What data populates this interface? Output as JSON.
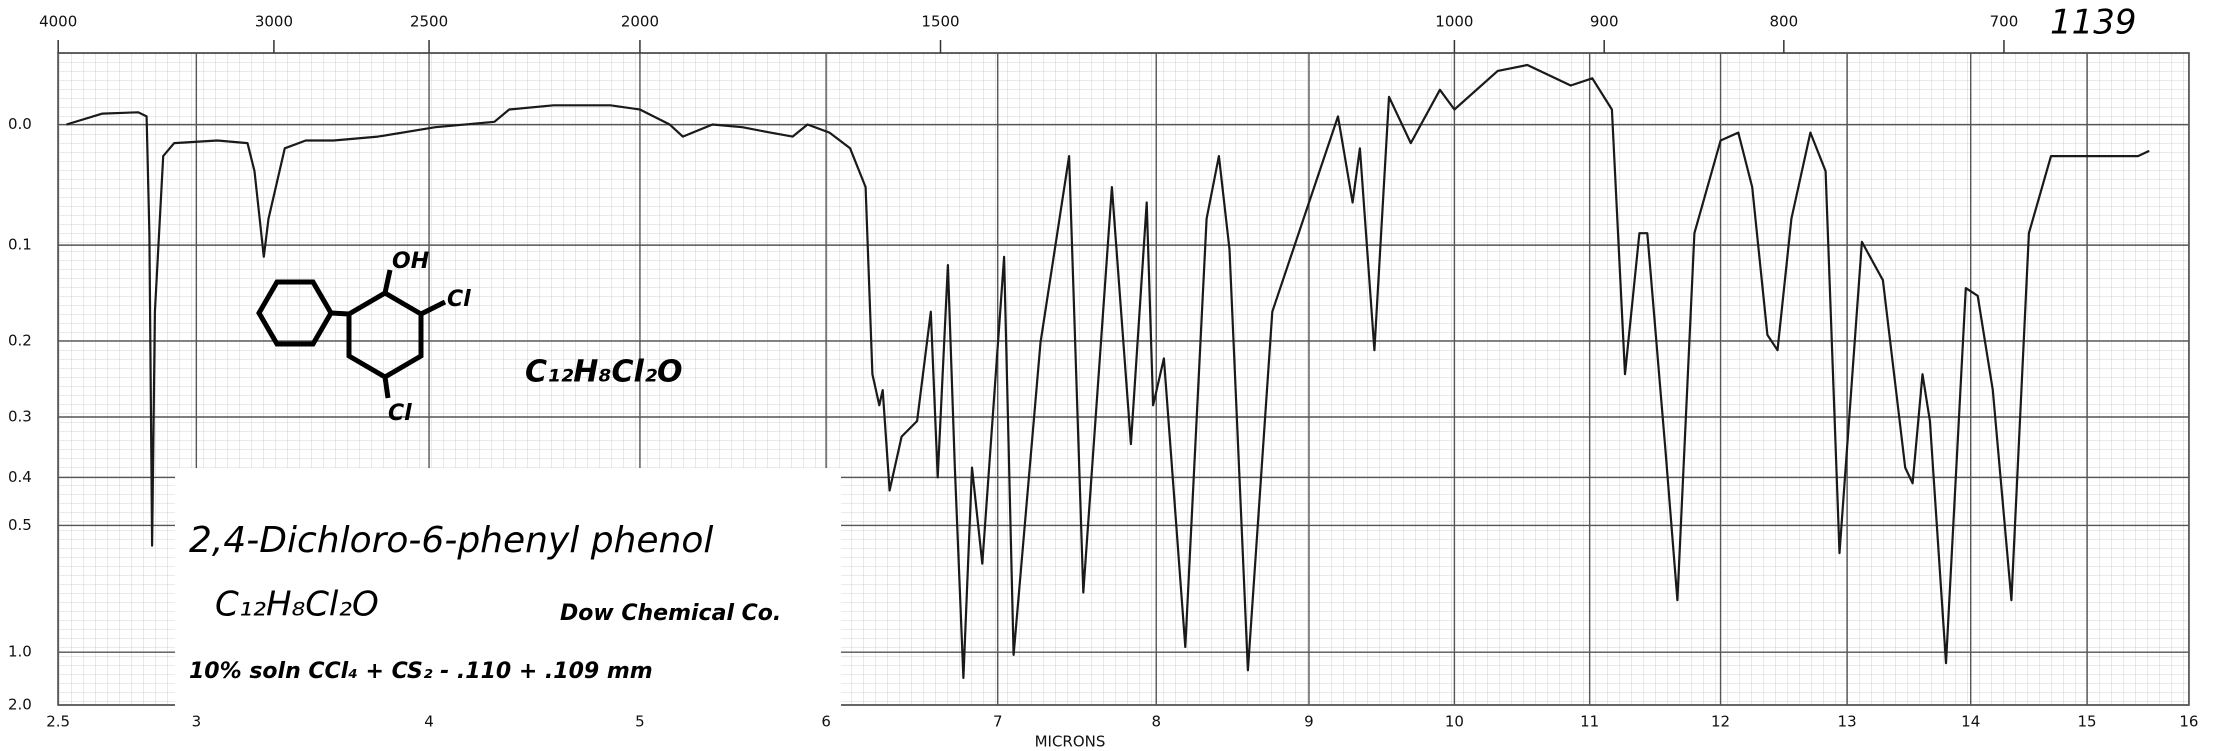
{
  "chart_data": {
    "type": "line",
    "x_label": "MICRONS",
    "annotation": "1139",
    "xlim": [
      2.5,
      16
    ],
    "xticks": [
      2.5,
      3,
      4,
      5,
      6,
      7,
      8,
      9,
      10,
      11,
      12,
      13,
      14,
      15,
      16
    ],
    "x2ticks": [
      4000,
      3000,
      2500,
      2000,
      1500,
      1000,
      900,
      800,
      700
    ],
    "ylim": [
      -0.05,
      2.0
    ],
    "y_scale": "absorbance",
    "yticks": [
      {
        "value": 0,
        "label": "0.0"
      },
      0.1,
      0.2,
      0.3,
      0.4,
      0.5,
      {
        "value": 1,
        "label": "1.0"
      },
      {
        "value": 2,
        "label": "2.0"
      }
    ],
    "grid": true,
    "color": "#1a1a1a",
    "x": [
      2.53,
      2.66,
      2.79,
      2.82,
      2.83,
      2.84,
      2.85,
      2.88,
      2.92,
      3.09,
      3.22,
      3.25,
      3.29,
      3.31,
      3.38,
      3.47,
      3.59,
      3.78,
      4.03,
      4.31,
      4.38,
      4.59,
      4.86,
      5.0,
      5.16,
      5.23,
      5.39,
      5.55,
      5.7,
      5.82,
      5.9,
      6.02,
      6.14,
      6.23,
      6.27,
      6.31,
      6.33,
      6.37,
      6.44,
      6.53,
      6.61,
      6.65,
      6.71,
      6.75,
      6.8,
      6.85,
      6.91,
      7.04,
      7.1,
      7.27,
      7.45,
      7.54,
      7.72,
      7.84,
      7.94,
      7.98,
      8.05,
      8.19,
      8.33,
      8.41,
      8.48,
      8.6,
      8.76,
      9.0,
      9.2,
      9.3,
      9.35,
      9.45,
      9.55,
      9.7,
      9.9,
      10.0,
      10.32,
      10.54,
      10.86,
      11.02,
      11.17,
      11.27,
      11.38,
      11.44,
      11.58,
      11.67,
      11.8,
      12.0,
      12.14,
      12.25,
      12.37,
      12.45,
      12.56,
      12.71,
      12.83,
      12.94,
      13.12,
      13.29,
      13.47,
      13.53,
      13.61,
      13.67,
      13.8,
      13.96,
      14.06,
      14.19,
      14.35,
      14.5,
      14.69,
      15.0,
      15.5,
      15.61
    ],
    "values": [
      0.0,
      -0.008,
      -0.009,
      -0.006,
      0.09,
      0.55,
      0.167,
      0.024,
      0.014,
      0.012,
      0.014,
      0.036,
      0.111,
      0.076,
      0.018,
      0.012,
      0.012,
      0.009,
      0.002,
      -0.002,
      -0.011,
      -0.014,
      -0.014,
      -0.011,
      0.0,
      0.009,
      0.0,
      0.002,
      0.006,
      0.009,
      0.0,
      0.006,
      0.018,
      0.049,
      0.241,
      0.283,
      0.262,
      0.425,
      0.33,
      0.306,
      0.167,
      0.4,
      0.119,
      0.38,
      1.25,
      0.382,
      0.6,
      0.111,
      1.02,
      0.202,
      0.024,
      0.695,
      0.049,
      0.342,
      0.062,
      0.283,
      0.221,
      0.963,
      0.076,
      0.024,
      0.104,
      1.16,
      0.167,
      0.062,
      -0.006,
      0.062,
      0.018,
      0.211,
      -0.02,
      0.014,
      -0.025,
      -0.011,
      -0.038,
      -0.042,
      -0.028,
      -0.033,
      -0.011,
      0.241,
      0.089,
      0.089,
      0.355,
      0.724,
      0.089,
      0.012,
      0.006,
      0.049,
      0.193,
      0.211,
      0.076,
      0.006,
      0.036,
      0.57,
      0.097,
      0.134,
      0.382,
      0.411,
      0.241,
      0.306,
      1.09,
      0.142,
      0.15,
      0.262,
      0.724,
      0.089,
      0.024,
      0.024,
      0.024,
      0.02
    ]
  },
  "structure": {
    "labels": [
      "OH",
      "Cl",
      "Cl"
    ],
    "formula": "C₁₂H₈Cl₂O"
  },
  "label_box": {
    "name": "2,4-Dichloro-6-phenyl phenol",
    "formula": "C₁₂H₈Cl₂O",
    "source": "Dow Chemical Co.",
    "conditions": "10% soln CCl₄ + CS₂ - .110 + .109 mm"
  }
}
